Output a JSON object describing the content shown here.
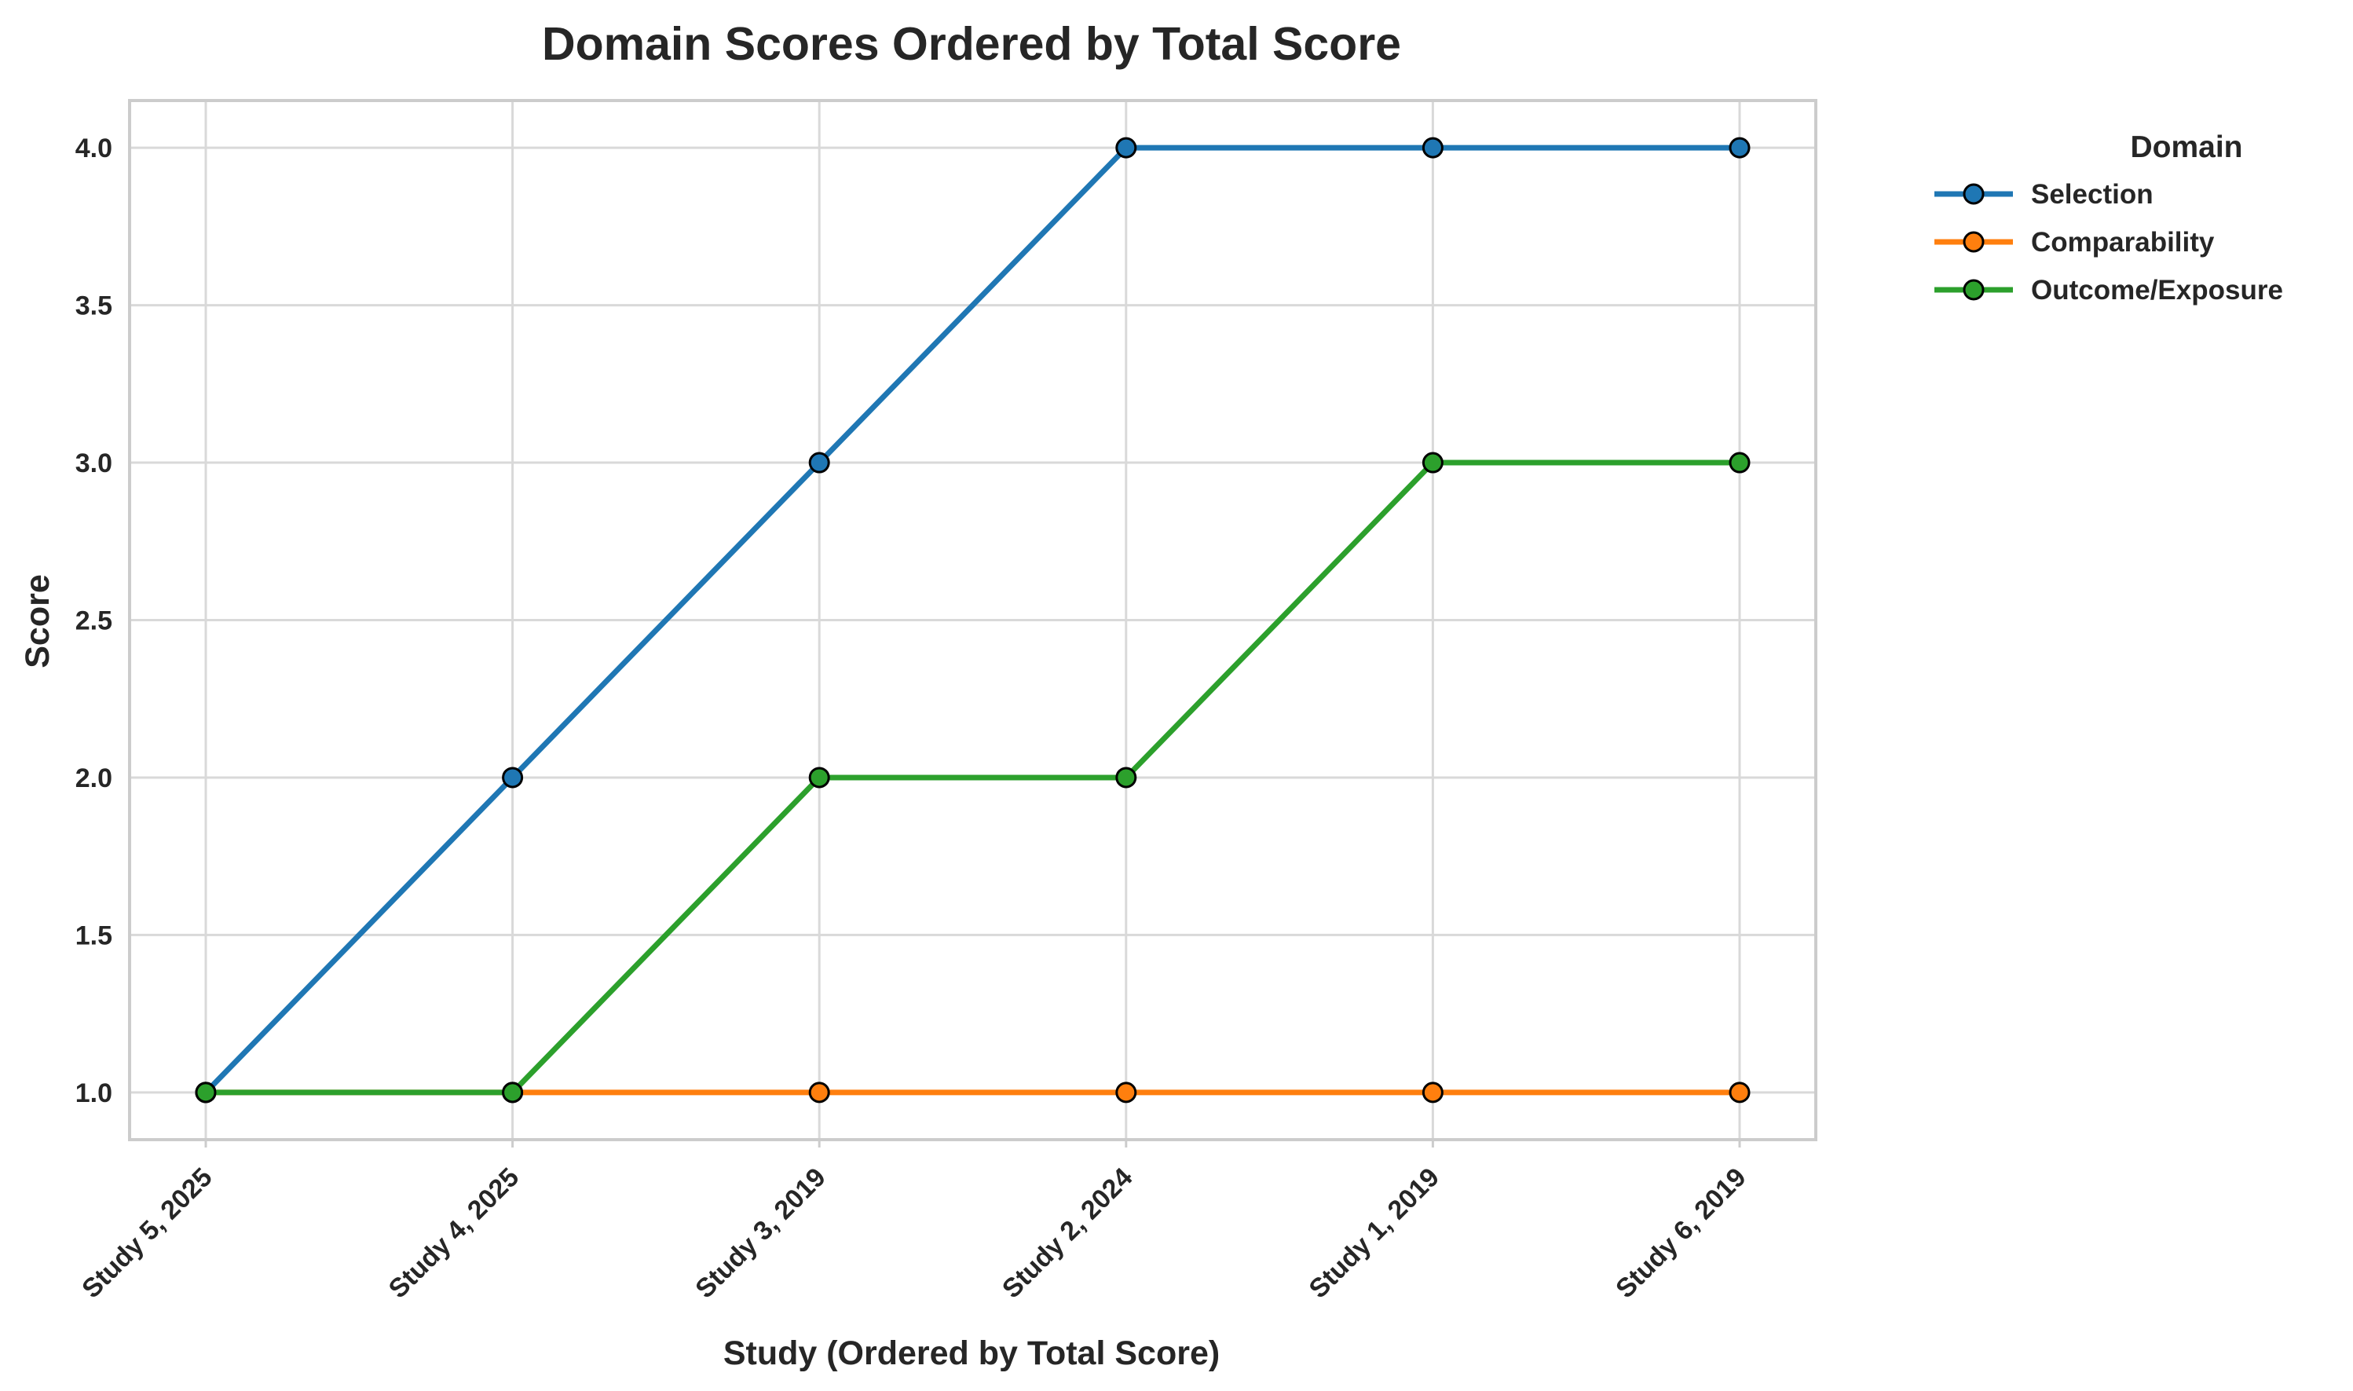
{
  "chart_data": {
    "type": "line",
    "title": "Domain Scores Ordered by Total Score",
    "xlabel": "Study (Ordered by Total Score)",
    "ylabel": "Score",
    "categories": [
      "Study 5, 2025",
      "Study 4, 2025",
      "Study 3, 2019",
      "Study 2, 2024",
      "Study 1, 2019",
      "Study 6, 2019"
    ],
    "ylim": [
      0.85,
      4.15
    ],
    "yticks": [
      "1.0",
      "1.5",
      "2.0",
      "2.5",
      "3.0",
      "3.5",
      "4.0"
    ],
    "grid": true,
    "legend": {
      "title": "Domain",
      "placement": "outside-right"
    },
    "series": [
      {
        "name": "Selection",
        "color": "#1f77b4",
        "values": [
          1,
          2,
          3,
          4,
          4,
          4
        ]
      },
      {
        "name": "Comparability",
        "color": "#ff7f0e",
        "values": [
          1,
          1,
          1,
          1,
          1,
          1
        ]
      },
      {
        "name": "Outcome/Exposure",
        "color": "#2ca02c",
        "values": [
          1,
          1,
          2,
          2,
          3,
          3
        ]
      }
    ]
  }
}
